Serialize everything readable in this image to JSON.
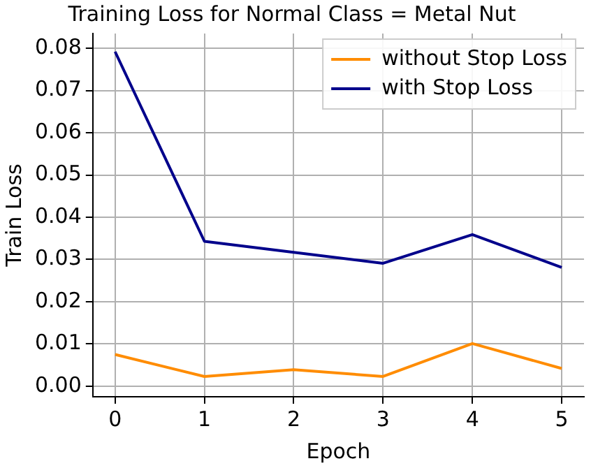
{
  "chart_data": {
    "type": "line",
    "title": "Training Loss for Normal Class = Metal Nut",
    "xlabel": "Epoch",
    "ylabel": "Train Loss",
    "x": [
      0,
      1,
      2,
      3,
      4,
      5
    ],
    "series": [
      {
        "name": "without Stop Loss",
        "color": "#ff8c00",
        "values": [
          0.0075,
          0.0023,
          0.0039,
          0.0023,
          0.0101,
          0.0042
        ]
      },
      {
        "name": "with Stop Loss",
        "color": "#00008b",
        "values": [
          0.0792,
          0.0343,
          0.0317,
          0.0291,
          0.0359,
          0.0281
        ]
      }
    ],
    "xlim": [
      -0.25,
      5.25
    ],
    "xticks": [
      0,
      1,
      2,
      3,
      4,
      5
    ],
    "ylim": [
      -0.0025,
      0.0835
    ],
    "yticks": [
      {
        "value": 0,
        "label": "0.00"
      },
      {
        "value": 0.01,
        "label": "0.01"
      },
      {
        "value": 0.02,
        "label": "0.02"
      },
      {
        "value": 0.03,
        "label": "0.03"
      },
      {
        "value": 0.04,
        "label": "0.04"
      },
      {
        "value": 0.05,
        "label": "0.05"
      },
      {
        "value": 0.06,
        "label": "0.06"
      },
      {
        "value": 0.07,
        "label": "0.07"
      },
      {
        "value": 0.08,
        "label": "0.08"
      }
    ],
    "grid": true,
    "legend": "top right",
    "marker": "none",
    "line_style": "solid"
  }
}
